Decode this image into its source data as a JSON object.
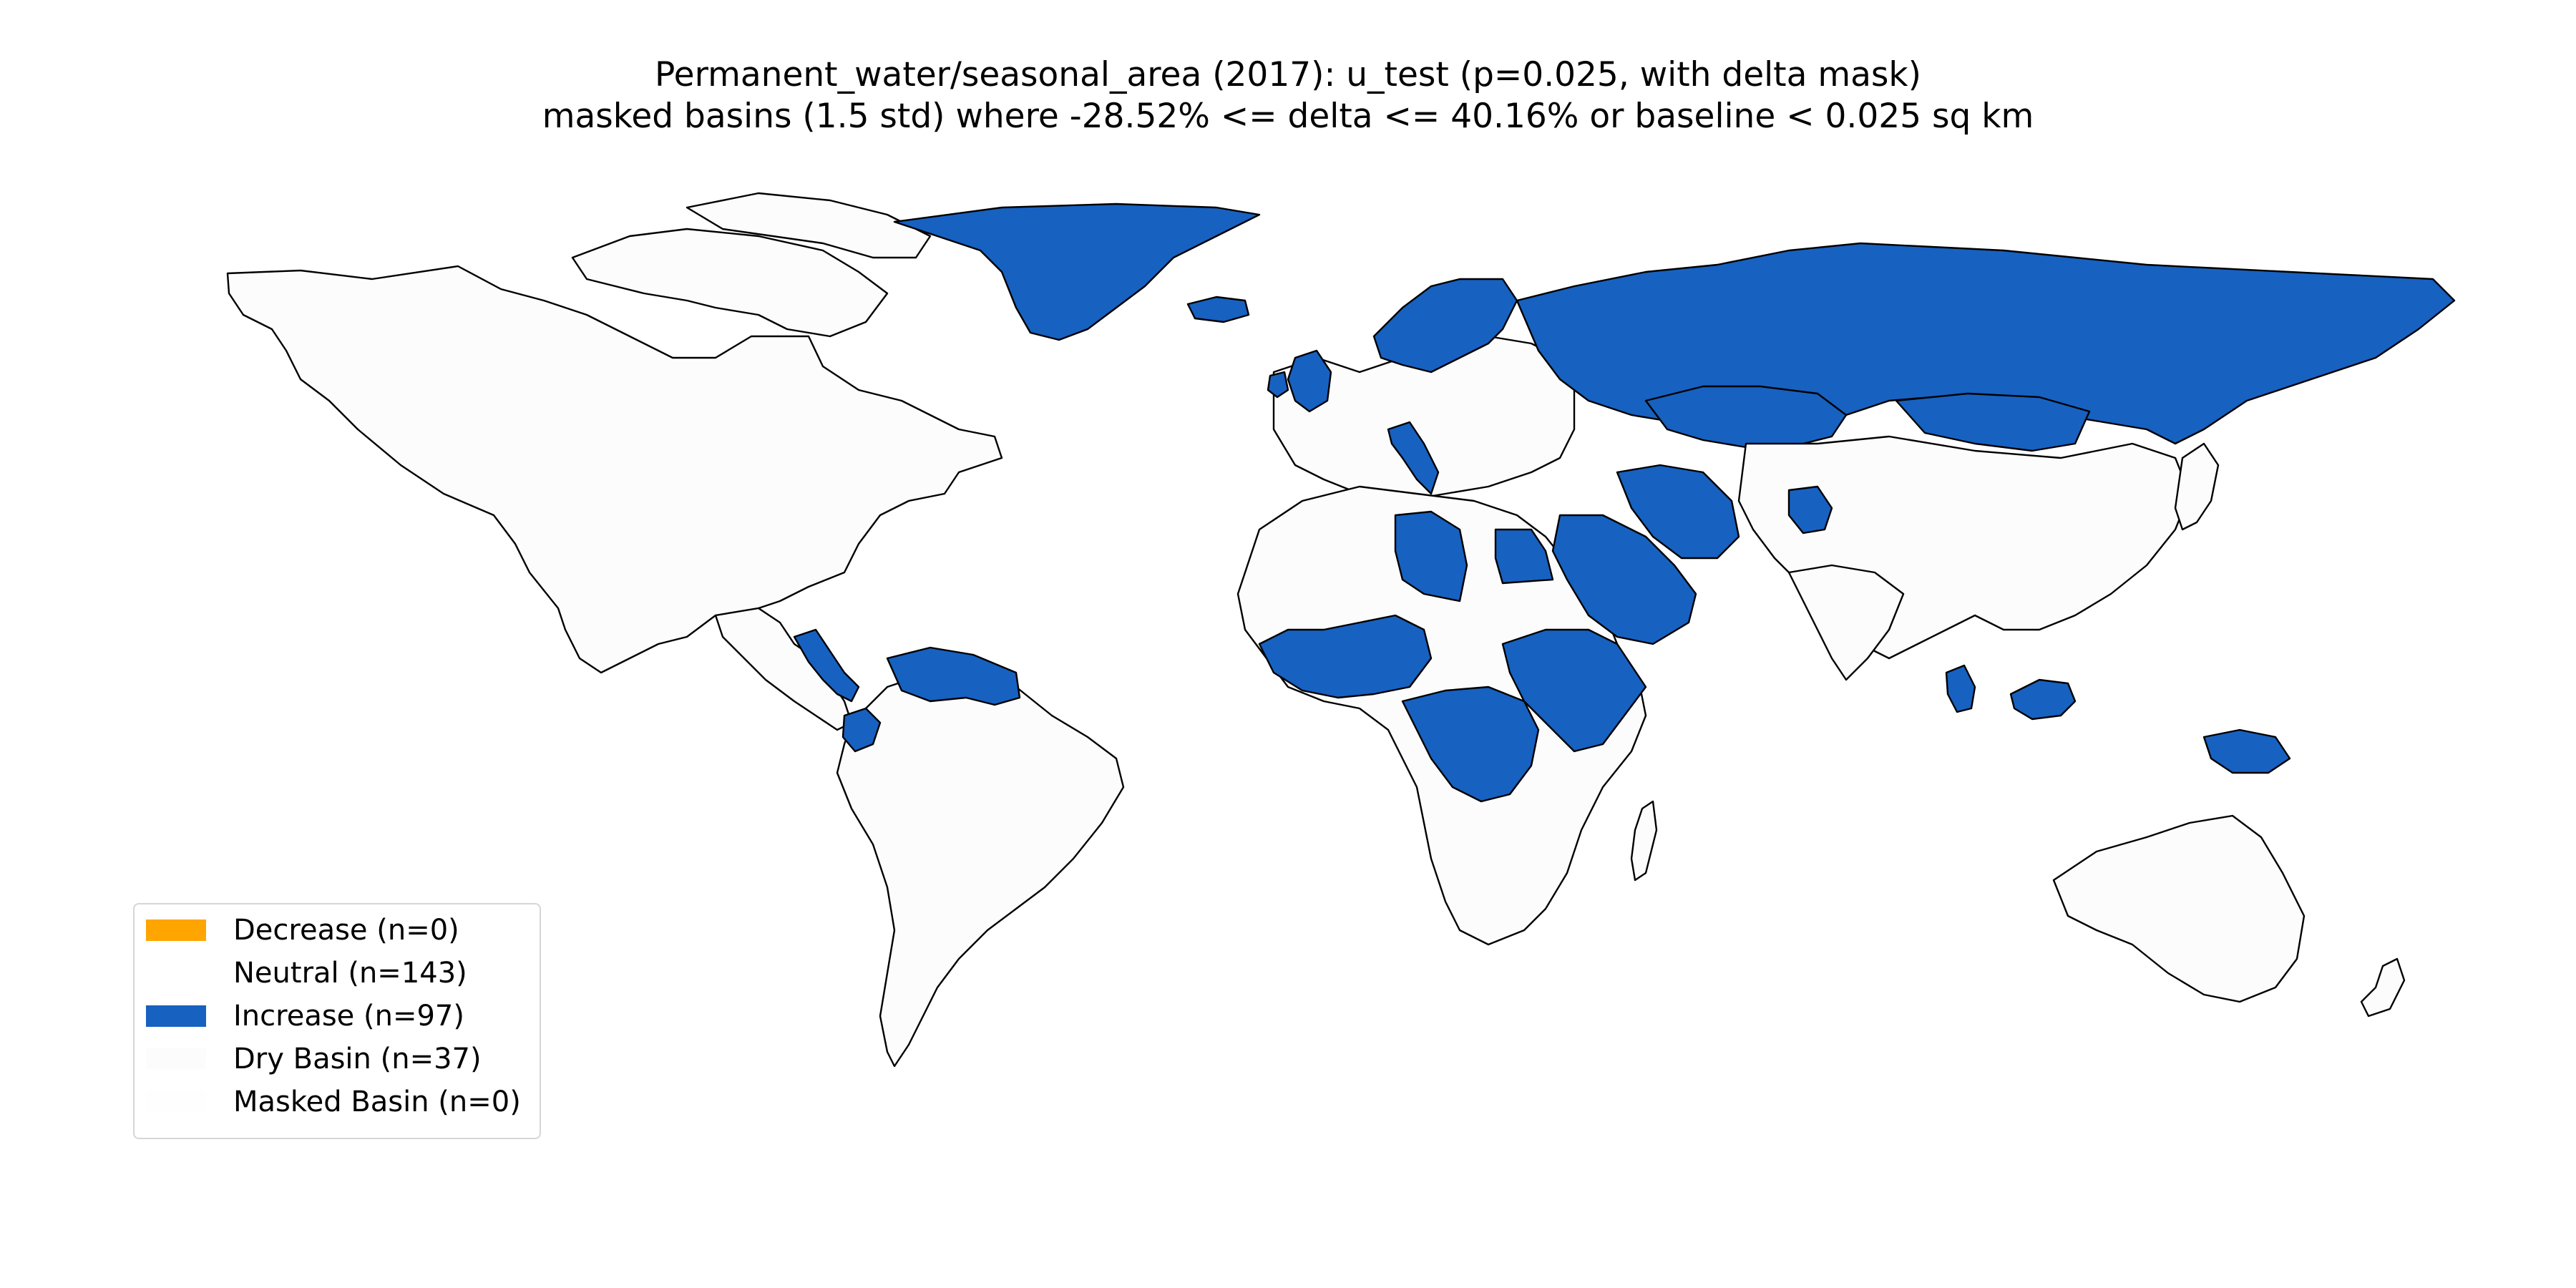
{
  "title": {
    "line1": "Permanent_water/seasonal_area (2017): u_test (p=0.025, with delta mask)",
    "line2": "masked basins (1.5 std) where -28.52% <= delta <= 40.16% or baseline < 0.025 sq km"
  },
  "colors": {
    "decrease": "#ffa500",
    "neutral": "#fcfcfc",
    "increase": "#1761c1",
    "dry_basin": "#fcfcfc",
    "masked_basin": "#fefefe",
    "border": "#000000"
  },
  "legend": {
    "placement": "lower-left",
    "items": [
      {
        "label": "Decrease (n=0)",
        "color": "#ffa500"
      },
      {
        "label": "Neutral (n=143)",
        "color": "#ffffff"
      },
      {
        "label": "Increase (n=97)",
        "color": "#1761c1"
      },
      {
        "label": "Dry Basin (n=37)",
        "color": "#fcfcfc"
      },
      {
        "label": "Masked Basin (n=0)",
        "color": "#fefefe"
      }
    ]
  },
  "map_data": {
    "type": "choropleth",
    "categories": {
      "decrease": 0,
      "neutral": 143,
      "increase": 97,
      "dry_basin": 37,
      "masked_basin": 0
    }
  }
}
